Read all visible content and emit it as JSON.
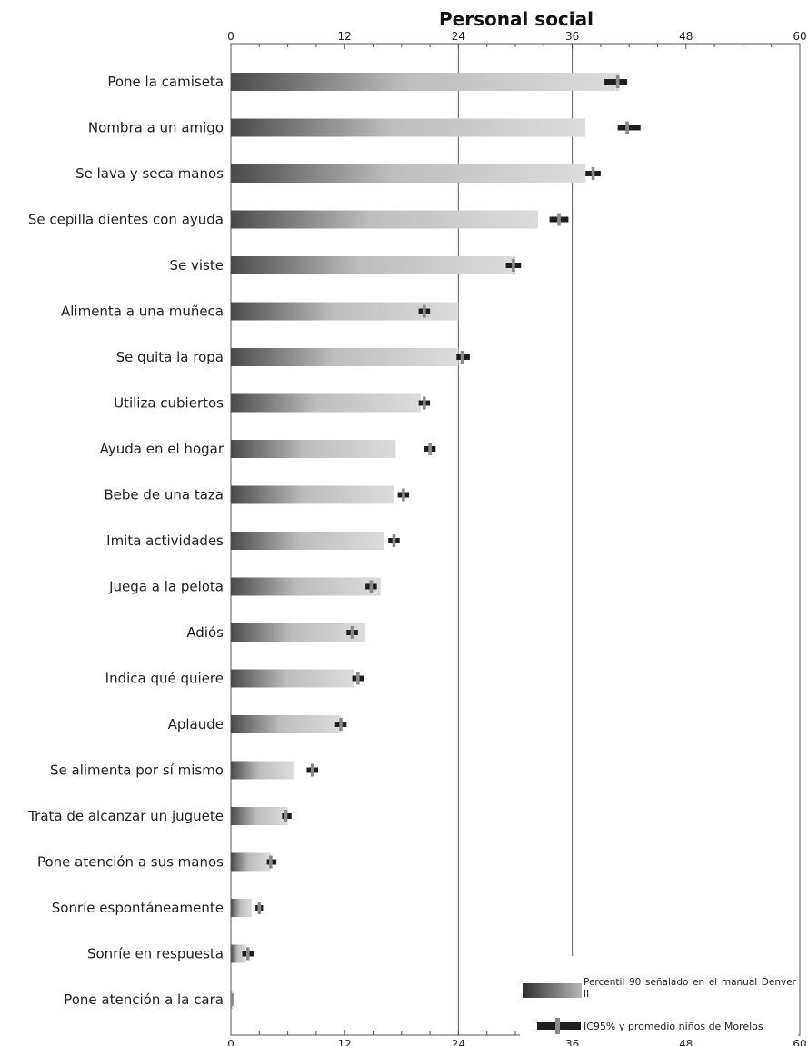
{
  "chart_data": {
    "type": "bar",
    "title": "Personal social",
    "xlim": [
      0,
      60
    ],
    "x_ticks": [
      "0",
      "12",
      "24",
      "36",
      "48",
      "60"
    ],
    "tick_values": [
      0,
      12,
      24,
      36,
      48,
      60
    ],
    "categories": [
      "Pone la camiseta",
      "Nombra a un amigo",
      "Se lava y seca manos",
      "Se cepilla dientes con ayuda",
      "Se viste",
      "Alimenta a una muñeca",
      "Se quita la ropa",
      "Utiliza cubiertos",
      "Ayuda en el hogar",
      "Bebe de una taza",
      "Imita actividades",
      "Juega a la pelota",
      "Adiós",
      "Indica qué quiere",
      "Aplaude",
      "Se alimenta por sí mismo",
      "Trata de alcanzar un juguete",
      "Pone atención a sus manos",
      "Sonríe espontáneamente",
      "Sonríe en respuesta",
      "Pone atención a la cara"
    ],
    "series": [
      {
        "name": "Percentil 90 señalado en el manual Denver II",
        "values": [
          41,
          37.4,
          37.4,
          32.4,
          30,
          24,
          24,
          20,
          17.4,
          17.2,
          16.2,
          15.8,
          14.2,
          13,
          11.6,
          6.6,
          6,
          4.2,
          2.2,
          1.6,
          0.2
        ]
      },
      {
        "name": "IC95% y promedio niños de Morelos",
        "mean": [
          40.8,
          41.8,
          38.2,
          34.6,
          29.8,
          20.4,
          24.4,
          20.4,
          21,
          18.2,
          17.2,
          14.8,
          12.8,
          13.4,
          11.6,
          8.6,
          5.8,
          4.2,
          3.0,
          1.8,
          0.1
        ],
        "ci_low": [
          39.4,
          40.8,
          37.4,
          33.6,
          29.0,
          19.8,
          23.8,
          19.8,
          20.4,
          17.6,
          16.6,
          14.2,
          12.2,
          12.8,
          11.0,
          8.0,
          5.4,
          3.8,
          2.6,
          1.2,
          0
        ],
        "ci_high": [
          41.8,
          43.2,
          39.0,
          35.6,
          30.6,
          21.0,
          25.2,
          21.0,
          21.6,
          18.8,
          17.8,
          15.4,
          13.4,
          14.0,
          12.2,
          9.2,
          6.4,
          4.8,
          3.4,
          2.4,
          0.2
        ]
      }
    ],
    "legend": {
      "position": "bottom-right",
      "p90_label": "Percentil 90 señalado en el manual Denver II",
      "ic_label": "IC95% y promedio niños de Morelos"
    },
    "gridlines_at": [
      24,
      36
    ]
  }
}
